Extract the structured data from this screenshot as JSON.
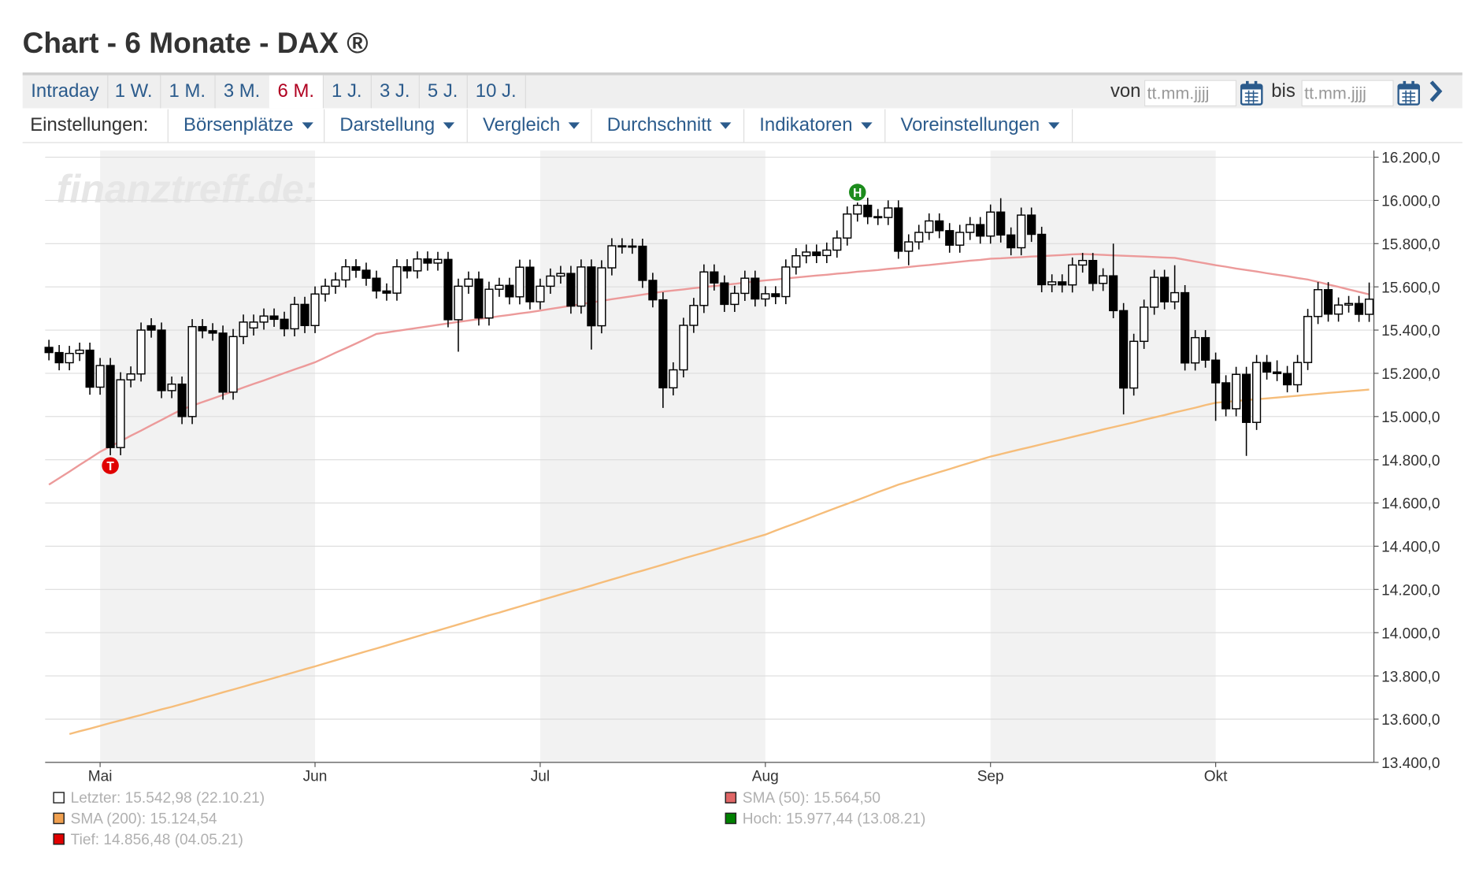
{
  "header": {
    "title": "Chart - 6 Monate - DAX ®"
  },
  "tabs": {
    "items": [
      "Intraday",
      "1 W.",
      "1 M.",
      "3 M.",
      "6 M.",
      "1 J.",
      "3 J.",
      "5 J.",
      "10 J."
    ],
    "active": 4
  },
  "range": {
    "from_label": "von",
    "from_placeholder": "tt.mm.jjjj",
    "to_label": "bis",
    "to_placeholder": "tt.mm.jjjj"
  },
  "settings": {
    "label": "Einstellungen:",
    "menus": [
      "Börsenplätze",
      "Darstellung",
      "Vergleich",
      "Durchschnitt",
      "Indikatoren",
      "Voreinstellungen"
    ]
  },
  "chart_data": {
    "type": "candlestick",
    "watermark": "finanztreff.de:",
    "categories": [
      null,
      null,
      null,
      null,
      null,
      "Mai",
      null,
      null,
      null,
      null,
      null,
      null,
      null,
      null,
      null,
      null,
      null,
      null,
      null,
      null,
      null,
      null,
      null,
      null,
      null,
      null,
      "Jun",
      null,
      null,
      null,
      null,
      null,
      null,
      null,
      null,
      null,
      null,
      null,
      null,
      null,
      null,
      null,
      null,
      null,
      null,
      null,
      null,
      null,
      "Jul",
      null,
      null,
      null,
      null,
      null,
      null,
      null,
      null,
      null,
      null,
      null,
      null,
      null,
      null,
      null,
      null,
      null,
      null,
      null,
      null,
      null,
      "Aug",
      null,
      null,
      null,
      null,
      null,
      null,
      null,
      null,
      null,
      null,
      null,
      null,
      null,
      null,
      null,
      null,
      null,
      null,
      null,
      null,
      null,
      "Sep",
      null,
      null,
      null,
      null,
      null,
      null,
      null,
      null,
      null,
      null,
      null,
      null,
      null,
      null,
      null,
      null,
      null,
      null,
      null,
      null,
      null,
      "Okt",
      null,
      null,
      null,
      null,
      null,
      null,
      null,
      null,
      null,
      null,
      null,
      null,
      null,
      null,
      null
    ],
    "ohlc": [
      [
        15320,
        15355,
        15260,
        15296
      ],
      [
        15296,
        15331,
        15214,
        15249
      ],
      [
        15249,
        15327,
        15214,
        15292
      ],
      [
        15292,
        15342,
        15257,
        15307
      ],
      [
        15307,
        15342,
        15101,
        15136
      ],
      [
        15136,
        15271,
        15101,
        15236
      ],
      [
        15236,
        15271,
        14821,
        14856.48
      ],
      [
        14856.48,
        15205,
        14821,
        15170
      ],
      [
        15170,
        15232,
        15135,
        15197
      ],
      [
        15197,
        15435,
        15162,
        15400
      ],
      [
        15420,
        15455,
        15365,
        15400
      ],
      [
        15400,
        15435,
        15085,
        15120
      ],
      [
        15120,
        15185,
        15085,
        15150
      ],
      [
        15150,
        15185,
        14965,
        15000
      ],
      [
        15000,
        15451,
        14965,
        15416
      ],
      [
        15416,
        15451,
        15362,
        15397
      ],
      [
        15397,
        15432,
        15351,
        15386
      ],
      [
        15386,
        15421,
        15078,
        15113
      ],
      [
        15113,
        15405,
        15078,
        15370
      ],
      [
        15370,
        15472,
        15335,
        15437
      ],
      [
        15410,
        15472,
        15375,
        15437
      ],
      [
        15437,
        15500,
        15402,
        15465
      ],
      [
        15465,
        15500,
        15415,
        15450
      ],
      [
        15450,
        15485,
        15371,
        15406
      ],
      [
        15406,
        15554,
        15371,
        15519
      ],
      [
        15519,
        15554,
        15386,
        15421
      ],
      [
        15421,
        15602,
        15386,
        15567
      ],
      [
        15567,
        15638,
        15532,
        15603
      ],
      [
        15603,
        15667,
        15568,
        15632
      ],
      [
        15632,
        15728,
        15597,
        15693
      ],
      [
        15693,
        15728,
        15642,
        15677
      ],
      [
        15677,
        15712,
        15605,
        15640
      ],
      [
        15640,
        15675,
        15546,
        15581
      ],
      [
        15581,
        15616,
        15536,
        15571
      ],
      [
        15571,
        15728,
        15536,
        15693
      ],
      [
        15693,
        15728,
        15639,
        15674
      ],
      [
        15674,
        15764,
        15639,
        15729
      ],
      [
        15729,
        15764,
        15675,
        15710
      ],
      [
        15710,
        15762,
        15675,
        15727
      ],
      [
        15727,
        15762,
        15413,
        15448
      ],
      [
        15448,
        15638,
        15300,
        15603
      ],
      [
        15603,
        15671,
        15568,
        15636
      ],
      [
        15636,
        15671,
        15421,
        15456
      ],
      [
        15456,
        15624,
        15421,
        15589
      ],
      [
        15589,
        15642,
        15554,
        15607
      ],
      [
        15607,
        15642,
        15519,
        15554
      ],
      [
        15554,
        15726,
        15519,
        15691
      ],
      [
        15691,
        15726,
        15496,
        15531
      ],
      [
        15531,
        15638,
        15496,
        15603
      ],
      [
        15603,
        15685,
        15568,
        15650
      ],
      [
        15650,
        15697,
        15615,
        15662
      ],
      [
        15662,
        15697,
        15476,
        15511
      ],
      [
        15511,
        15727,
        15476,
        15692
      ],
      [
        15692,
        15727,
        15310,
        15420
      ],
      [
        15420,
        15723,
        15385,
        15688
      ],
      [
        15688,
        15825,
        15653,
        15790
      ],
      [
        15790,
        15825,
        15754,
        15789
      ],
      [
        15789,
        15823,
        15753,
        15788
      ],
      [
        15788,
        15823,
        15595,
        15630
      ],
      [
        15630,
        15665,
        15505,
        15540
      ],
      [
        15540,
        15575,
        15040,
        15133
      ],
      [
        15133,
        15251,
        15098,
        15216
      ],
      [
        15216,
        15457,
        15181,
        15422
      ],
      [
        15422,
        15549,
        15387,
        15514
      ],
      [
        15514,
        15704,
        15479,
        15669
      ],
      [
        15669,
        15704,
        15583,
        15618
      ],
      [
        15618,
        15653,
        15484,
        15519
      ],
      [
        15519,
        15605,
        15484,
        15570
      ],
      [
        15570,
        15675,
        15535,
        15640
      ],
      [
        15640,
        15675,
        15509,
        15544
      ],
      [
        15544,
        15603,
        15509,
        15568
      ],
      [
        15568,
        15603,
        15520,
        15555
      ],
      [
        15555,
        15727,
        15520,
        15692
      ],
      [
        15692,
        15779,
        15657,
        15744
      ],
      [
        15744,
        15796,
        15709,
        15761
      ],
      [
        15761,
        15796,
        15710,
        15745
      ],
      [
        15745,
        15805,
        15710,
        15770
      ],
      [
        15770,
        15861,
        15735,
        15826
      ],
      [
        15826,
        15972,
        15791,
        15937
      ],
      [
        15937,
        15990,
        15902,
        15977.44
      ],
      [
        15977.44,
        16012,
        15890,
        15925
      ],
      [
        15925,
        15960,
        15886,
        15921
      ],
      [
        15921,
        16000,
        15886,
        15965
      ],
      [
        15965,
        16000,
        15730,
        15765
      ],
      [
        15765,
        15843,
        15700,
        15808
      ],
      [
        15808,
        15887,
        15773,
        15852
      ],
      [
        15852,
        15940,
        15817,
        15905
      ],
      [
        15905,
        15940,
        15825,
        15860
      ],
      [
        15860,
        15895,
        15758,
        15793
      ],
      [
        15793,
        15887,
        15758,
        15852
      ],
      [
        15852,
        15923,
        15817,
        15888
      ],
      [
        15888,
        15923,
        15800,
        15835
      ],
      [
        15835,
        15981,
        15800,
        15946
      ],
      [
        15946,
        16010,
        15805,
        15840
      ],
      [
        15840,
        15875,
        15746,
        15781
      ],
      [
        15781,
        15967,
        15746,
        15932
      ],
      [
        15932,
        15967,
        15808,
        15843
      ],
      [
        15843,
        15878,
        15575,
        15610
      ],
      [
        15610,
        15658,
        15575,
        15623
      ],
      [
        15623,
        15658,
        15574,
        15609
      ],
      [
        15609,
        15736,
        15574,
        15701
      ],
      [
        15701,
        15757,
        15666,
        15722
      ],
      [
        15722,
        15757,
        15581,
        15616
      ],
      [
        15616,
        15686,
        15581,
        15651
      ],
      [
        15651,
        15800,
        15455,
        15490
      ],
      [
        15490,
        15525,
        15010,
        15132
      ],
      [
        15132,
        15383,
        15097,
        15348
      ],
      [
        15348,
        15541,
        15313,
        15506
      ],
      [
        15506,
        15679,
        15471,
        15644
      ],
      [
        15644,
        15679,
        15496,
        15531
      ],
      [
        15531,
        15700,
        15496,
        15573
      ],
      [
        15573,
        15608,
        15213,
        15248
      ],
      [
        15248,
        15400,
        15213,
        15365
      ],
      [
        15365,
        15400,
        15226,
        15261
      ],
      [
        15261,
        15296,
        14980,
        15156
      ],
      [
        15156,
        15191,
        15001,
        15036
      ],
      [
        15036,
        15230,
        15001,
        15195
      ],
      [
        15195,
        15230,
        14818,
        14973
      ],
      [
        14973,
        15285,
        14938,
        15250
      ],
      [
        15250,
        15285,
        15171,
        15206
      ],
      [
        15206,
        15260,
        15164,
        15199
      ],
      [
        15199,
        15234,
        15112,
        15147
      ],
      [
        15147,
        15285,
        15112,
        15250
      ],
      [
        15250,
        15498,
        15215,
        15463
      ],
      [
        15463,
        15622,
        15428,
        15587
      ],
      [
        15587,
        15622,
        15439,
        15474
      ],
      [
        15474,
        15551,
        15439,
        15516
      ],
      [
        15516,
        15558,
        15481,
        15523
      ],
      [
        15523,
        15558,
        15438,
        15473
      ],
      [
        15473,
        15620,
        15438,
        15542.98
      ]
    ],
    "up_color": "#ffffff",
    "down_color": "#000000",
    "wick_color": "#000000",
    "series": [
      {
        "color": "#ec9a9a",
        "values": [
          14685,
          14715,
          14745,
          14776,
          14806,
          14837,
          14862,
          14886,
          14911,
          14935,
          14960,
          14984,
          15009,
          15033,
          15050,
          15067,
          15083,
          15100,
          15117,
          15134,
          15151,
          15167,
          15184,
          15201,
          15218,
          15234,
          15251,
          15273,
          15295,
          15316,
          15338,
          15360,
          15382,
          15389,
          15396,
          15403,
          15410,
          15417,
          15424,
          15431,
          15438,
          15444,
          15451,
          15457,
          15464,
          15470,
          15477,
          15483,
          15490,
          15498,
          15505,
          15513,
          15520,
          15528,
          15535,
          15543,
          15550,
          15557,
          15564,
          15571,
          15578,
          15583,
          15588,
          15594,
          15599,
          15604,
          15609,
          15614,
          15620,
          15625,
          15630,
          15634,
          15639,
          15643,
          15648,
          15652,
          15656,
          15661,
          15665,
          15670,
          15674,
          15678,
          15683,
          15687,
          15692,
          15697,
          15701,
          15706,
          15711,
          15716,
          15721,
          15725,
          15730,
          15732,
          15735,
          15737,
          15740,
          15742,
          15745,
          15747,
          15750,
          15752,
          15750,
          15748,
          15746,
          15744,
          15742,
          15740,
          15738,
          15736,
          15734,
          15726,
          15717,
          15709,
          15700,
          15693,
          15685,
          15678,
          15671,
          15663,
          15656,
          15649,
          15641,
          15634,
          15623,
          15611,
          15600,
          15588,
          15577,
          15565
        ]
      },
      {
        "color": "#f6bd7a",
        "values": [
          null,
          null,
          13531,
          13544,
          13556,
          13569,
          13582,
          13594,
          13607,
          13619,
          13632,
          13645,
          13657,
          13670,
          13683,
          13697,
          13710,
          13724,
          13737,
          13750,
          13764,
          13777,
          13790,
          13804,
          13817,
          13831,
          13844,
          13858,
          13872,
          13886,
          13900,
          13914,
          13927,
          13941,
          13955,
          13969,
          13983,
          13997,
          14010,
          14024,
          14038,
          14052,
          14066,
          14080,
          14093,
          14107,
          14121,
          14135,
          14149,
          14163,
          14177,
          14191,
          14204,
          14218,
          14232,
          14246,
          14260,
          14274,
          14287,
          14301,
          14315,
          14329,
          14343,
          14357,
          14370,
          14384,
          14398,
          14412,
          14426,
          14440,
          14454,
          14472,
          14490,
          14507,
          14525,
          14543,
          14561,
          14579,
          14596,
          14614,
          14632,
          14650,
          14667,
          14685,
          14699,
          14714,
          14728,
          14743,
          14757,
          14772,
          14786,
          14801,
          14815,
          14826,
          14838,
          14849,
          14860,
          14872,
          14883,
          14894,
          14906,
          14917,
          14928,
          14940,
          14951,
          14962,
          14973,
          14985,
          14996,
          15007,
          15019,
          15030,
          15041,
          15053,
          15064,
          15068,
          15072,
          15076,
          15080,
          15084,
          15088,
          15092,
          15096,
          15101,
          15105,
          15109,
          15113,
          15117,
          15121,
          15125
        ]
      }
    ],
    "markers": [
      {
        "label": "T",
        "color": "#e00000",
        "at": "min_close"
      },
      {
        "label": "H",
        "color": "#1c8c1c",
        "at": "max_close"
      }
    ],
    "ylim": [
      13400,
      16200
    ],
    "yticks": [
      {
        "value": 13400,
        "label": "13.400,0"
      },
      {
        "value": 13600,
        "label": "13.600,0"
      },
      {
        "value": 13800,
        "label": "13.800,0"
      },
      {
        "value": 14000,
        "label": "14.000,0"
      },
      {
        "value": 14200,
        "label": "14.200,0"
      },
      {
        "value": 14400,
        "label": "14.400,0"
      },
      {
        "value": 14600,
        "label": "14.600,0"
      },
      {
        "value": 14800,
        "label": "14.800,0"
      },
      {
        "value": 15000,
        "label": "15.000,0"
      },
      {
        "value": 15200,
        "label": "15.200,0"
      },
      {
        "value": 15400,
        "label": "15.400,0"
      },
      {
        "value": 15600,
        "label": "15.600,0"
      },
      {
        "value": 15800,
        "label": "15.800,0"
      },
      {
        "value": 16000,
        "label": "16.000,0"
      },
      {
        "value": 16200,
        "label": "16.200,0"
      }
    ],
    "grid": true,
    "legend": [
      {
        "text": "Letzter: 15.542,98 (22.10.21)",
        "color": "#ffffff"
      },
      {
        "text": "SMA (50): 15.564,50",
        "color": "#e06666"
      },
      {
        "text": "SMA (200): 15.124,54",
        "color": "#f0a050"
      },
      {
        "text": "Hoch: 15.977,44 (13.08.21)",
        "color": "#008000"
      },
      {
        "text": "Tief: 14.856,48 (04.05.21)",
        "color": "#e00000"
      }
    ]
  }
}
